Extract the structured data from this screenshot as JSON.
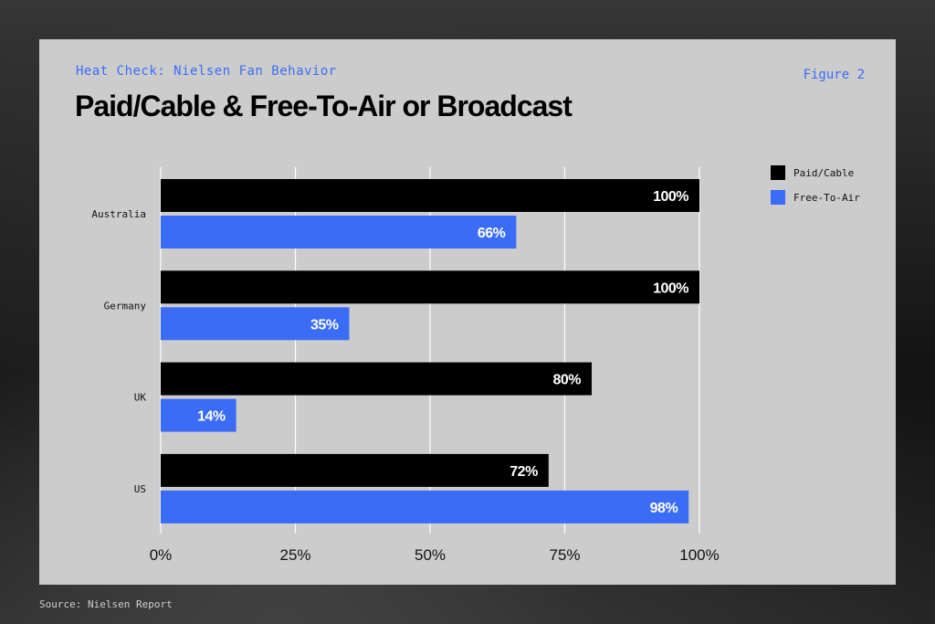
{
  "header": {
    "kicker": "Heat Check: Nielsen Fan Behavior",
    "figure_label": "Figure 2",
    "title": "Paid/Cable & Free-To-Air or Broadcast"
  },
  "footer": {
    "source": "Source: Nielsen Report"
  },
  "colors": {
    "paid": "#000000",
    "free": "#3b6cf6",
    "panel": "#cccccc",
    "grid": "#ffffff"
  },
  "chart_data": {
    "type": "bar",
    "orientation": "horizontal",
    "categories": [
      "Australia",
      "Germany",
      "UK",
      "US"
    ],
    "series": [
      {
        "name": "Paid/Cable",
        "values": [
          100,
          100,
          80,
          72
        ],
        "labels": [
          "100%",
          "100%",
          "80%",
          "72%"
        ]
      },
      {
        "name": "Free-To-Air",
        "values": [
          66,
          35,
          14,
          98
        ],
        "labels": [
          "66%",
          "35%",
          "14%",
          "98%"
        ]
      }
    ],
    "xlim": [
      0,
      100
    ],
    "xticks": [
      0,
      25,
      50,
      75,
      100
    ],
    "xtick_labels": [
      "0%",
      "25%",
      "50%",
      "75%",
      "100%"
    ],
    "grid": true,
    "legend": "top-right"
  }
}
